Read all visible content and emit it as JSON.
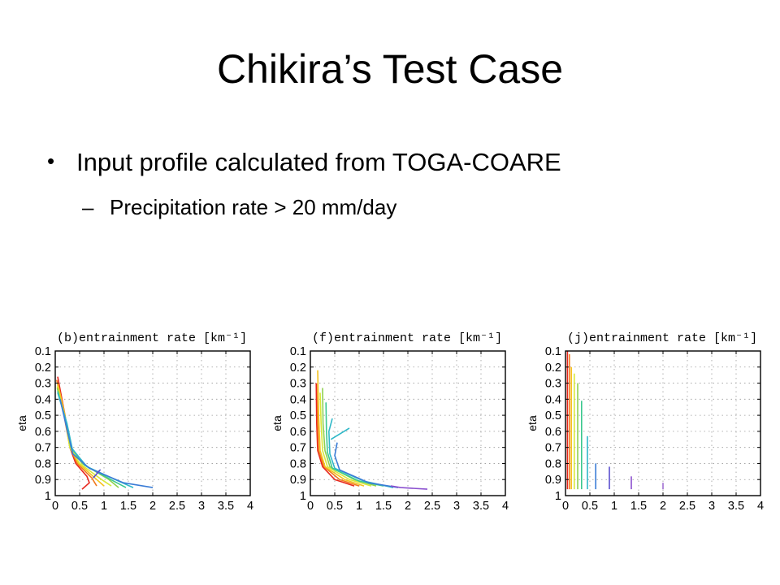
{
  "slide": {
    "title": "Chikira’s Test Case",
    "bullets": [
      {
        "text": "Input profile calculated from TOGA-COARE"
      }
    ],
    "sub_bullets": [
      {
        "dash": "–",
        "text": "Precipitation rate > 20 mm/day"
      }
    ],
    "bullet_glyph": "•"
  },
  "chart_data": [
    {
      "type": "line",
      "title": "(b)entrainment rate [km⁻¹]",
      "xlabel": "",
      "ylabel": "eta",
      "xlim": [
        0,
        4
      ],
      "ylim": [
        1,
        0.1
      ],
      "xticks": [
        "0",
        "0.5",
        "1",
        "1.5",
        "2",
        "2.5",
        "3",
        "3.5",
        "4"
      ],
      "yticks": [
        "0.1",
        "0.2",
        "0.3",
        "0.4",
        "0.5",
        "0.6",
        "0.7",
        "0.8",
        "0.9",
        "1"
      ],
      "grid": true,
      "series": [
        {
          "color": "#e8281e",
          "points": [
            [
              0.05,
              0.26
            ],
            [
              0.2,
              0.5
            ],
            [
              0.3,
              0.7
            ],
            [
              0.42,
              0.8
            ],
            [
              0.65,
              0.88
            ],
            [
              0.7,
              0.92
            ],
            [
              0.55,
              0.96
            ]
          ]
        },
        {
          "color": "#f07a1e",
          "points": [
            [
              0.03,
              0.28
            ],
            [
              0.18,
              0.5
            ],
            [
              0.3,
              0.7
            ],
            [
              0.45,
              0.8
            ],
            [
              0.75,
              0.89
            ],
            [
              0.85,
              0.94
            ]
          ]
        },
        {
          "color": "#f5c31e",
          "points": [
            [
              0.05,
              0.3
            ],
            [
              0.2,
              0.5
            ],
            [
              0.3,
              0.7
            ],
            [
              0.48,
              0.8
            ],
            [
              0.85,
              0.9
            ],
            [
              1.0,
              0.94
            ]
          ]
        },
        {
          "color": "#d8e83a",
          "points": [
            [
              0.04,
              0.32
            ],
            [
              0.2,
              0.52
            ],
            [
              0.3,
              0.7
            ],
            [
              0.5,
              0.8
            ],
            [
              0.95,
              0.9
            ],
            [
              1.15,
              0.94
            ]
          ]
        },
        {
          "color": "#8fd14f",
          "points": [
            [
              0.04,
              0.33
            ],
            [
              0.2,
              0.52
            ],
            [
              0.32,
              0.7
            ],
            [
              0.55,
              0.8
            ],
            [
              1.1,
              0.9
            ],
            [
              1.3,
              0.95
            ]
          ]
        },
        {
          "color": "#3cc88f",
          "points": [
            [
              0.05,
              0.35
            ],
            [
              0.22,
              0.54
            ],
            [
              0.33,
              0.7
            ],
            [
              0.6,
              0.81
            ],
            [
              1.2,
              0.91
            ],
            [
              1.45,
              0.95
            ]
          ]
        },
        {
          "color": "#2fb8c8",
          "points": [
            [
              0.05,
              0.36
            ],
            [
              0.24,
              0.55
            ],
            [
              0.35,
              0.71
            ],
            [
              0.65,
              0.82
            ],
            [
              1.3,
              0.91
            ],
            [
              1.6,
              0.95
            ]
          ]
        },
        {
          "color": "#3a7cd6",
          "points": [
            [
              0.1,
              0.4
            ],
            [
              0.25,
              0.6
            ],
            [
              0.36,
              0.74
            ],
            [
              0.7,
              0.83
            ],
            [
              1.4,
              0.92
            ],
            [
              2.0,
              0.95
            ]
          ]
        },
        {
          "color": "#5a4fcf",
          "points": [
            [
              0.78,
              0.89
            ],
            [
              0.92,
              0.84
            ],
            [
              0.85,
              0.86
            ]
          ]
        }
      ]
    },
    {
      "type": "line",
      "title": "(f)entrainment rate [km⁻¹]",
      "xlabel": "",
      "ylabel": "eta",
      "xlim": [
        0,
        4
      ],
      "ylim": [
        1,
        0.1
      ],
      "xticks": [
        "0",
        "0.5",
        "1",
        "1.5",
        "2",
        "2.5",
        "3",
        "3.5",
        "4"
      ],
      "yticks": [
        "0.1",
        "0.2",
        "0.3",
        "0.4",
        "0.5",
        "0.6",
        "0.7",
        "0.8",
        "0.9",
        "1"
      ],
      "grid": true,
      "series": [
        {
          "color": "#e8281e",
          "points": [
            [
              0.12,
              0.3
            ],
            [
              0.13,
              0.55
            ],
            [
              0.15,
              0.72
            ],
            [
              0.25,
              0.82
            ],
            [
              0.5,
              0.9
            ],
            [
              0.9,
              0.94
            ]
          ]
        },
        {
          "color": "#f07a1e",
          "points": [
            [
              0.15,
              0.3
            ],
            [
              0.15,
              0.55
            ],
            [
              0.17,
              0.72
            ],
            [
              0.28,
              0.82
            ],
            [
              0.6,
              0.9
            ],
            [
              1.0,
              0.94
            ]
          ]
        },
        {
          "color": "#f5c31e",
          "points": [
            [
              0.15,
              0.22
            ],
            [
              0.17,
              0.5
            ],
            [
              0.2,
              0.72
            ],
            [
              0.3,
              0.82
            ],
            [
              0.7,
              0.9
            ],
            [
              1.1,
              0.94
            ]
          ]
        },
        {
          "color": "#d8e83a",
          "points": [
            [
              0.2,
              0.36
            ],
            [
              0.22,
              0.55
            ],
            [
              0.25,
              0.72
            ],
            [
              0.35,
              0.82
            ],
            [
              0.8,
              0.9
            ],
            [
              1.25,
              0.94
            ]
          ]
        },
        {
          "color": "#8fd14f",
          "points": [
            [
              0.25,
              0.33
            ],
            [
              0.26,
              0.55
            ],
            [
              0.3,
              0.72
            ],
            [
              0.4,
              0.82
            ],
            [
              0.9,
              0.9
            ],
            [
              1.35,
              0.94
            ]
          ]
        },
        {
          "color": "#3cc88f",
          "points": [
            [
              0.32,
              0.42
            ],
            [
              0.33,
              0.6
            ],
            [
              0.35,
              0.73
            ],
            [
              0.45,
              0.83
            ],
            [
              1.0,
              0.91
            ],
            [
              1.5,
              0.94
            ]
          ]
        },
        {
          "color": "#2fb8c8",
          "points": [
            [
              0.45,
              0.52
            ],
            [
              0.38,
              0.6
            ],
            [
              0.4,
              0.74
            ],
            [
              0.5,
              0.83
            ],
            [
              1.1,
              0.91
            ],
            [
              1.7,
              0.95
            ]
          ]
        },
        {
          "color": "#2fb8c8",
          "points": [
            [
              0.42,
              0.65
            ],
            [
              0.8,
              0.58
            ]
          ]
        },
        {
          "color": "#3a7cd6",
          "points": [
            [
              0.55,
              0.67
            ],
            [
              0.5,
              0.75
            ],
            [
              0.6,
              0.84
            ],
            [
              1.2,
              0.92
            ],
            [
              1.8,
              0.95
            ]
          ]
        },
        {
          "color": "#8a4fcf",
          "points": [
            [
              1.65,
              0.94
            ],
            [
              1.85,
              0.95
            ],
            [
              2.4,
              0.96
            ]
          ]
        }
      ]
    },
    {
      "type": "line",
      "title": "(j)entrainment rate [km⁻¹]",
      "xlabel": "",
      "ylabel": "eta",
      "xlim": [
        0,
        4
      ],
      "ylim": [
        1,
        0.1
      ],
      "xticks": [
        "0",
        "0.5",
        "1",
        "1.5",
        "2",
        "2.5",
        "3",
        "3.5",
        "4"
      ],
      "yticks": [
        "0.1",
        "0.2",
        "0.3",
        "0.4",
        "0.5",
        "0.6",
        "0.7",
        "0.8",
        "0.9",
        "1"
      ],
      "grid": true,
      "series": [
        {
          "color": "#e8281e",
          "points": [
            [
              0.04,
              0.1
            ],
            [
              0.04,
              0.96
            ]
          ]
        },
        {
          "color": "#f07a1e",
          "points": [
            [
              0.08,
              0.12
            ],
            [
              0.08,
              0.96
            ]
          ]
        },
        {
          "color": "#f5c31e",
          "points": [
            [
              0.12,
              0.2
            ],
            [
              0.12,
              0.96
            ]
          ]
        },
        {
          "color": "#d8e83a",
          "points": [
            [
              0.18,
              0.24
            ],
            [
              0.18,
              0.96
            ]
          ]
        },
        {
          "color": "#8fd14f",
          "points": [
            [
              0.25,
              0.3
            ],
            [
              0.25,
              0.96
            ]
          ]
        },
        {
          "color": "#3cc88f",
          "points": [
            [
              0.33,
              0.41
            ],
            [
              0.33,
              0.96
            ]
          ]
        },
        {
          "color": "#2fb8c8",
          "points": [
            [
              0.45,
              0.63
            ],
            [
              0.45,
              0.96
            ]
          ]
        },
        {
          "color": "#3a7cd6",
          "points": [
            [
              0.62,
              0.8
            ],
            [
              0.62,
              0.96
            ]
          ]
        },
        {
          "color": "#5a4fcf",
          "points": [
            [
              0.9,
              0.82
            ],
            [
              0.9,
              0.96
            ]
          ]
        },
        {
          "color": "#8a4fcf",
          "points": [
            [
              1.35,
              0.88
            ],
            [
              1.35,
              0.96
            ]
          ]
        },
        {
          "color": "#a06fd0",
          "points": [
            [
              2.0,
              0.92
            ],
            [
              2.0,
              0.96
            ]
          ]
        }
      ]
    }
  ]
}
